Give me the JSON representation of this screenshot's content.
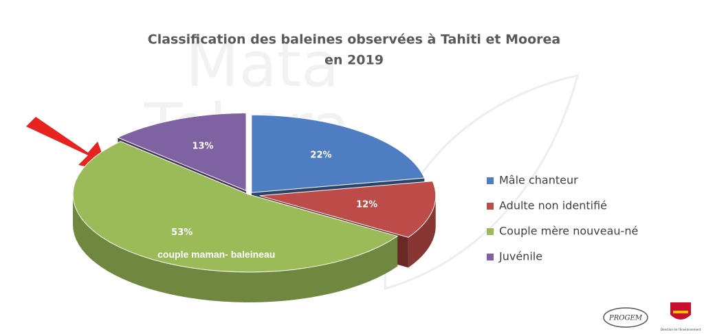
{
  "chart_data": {
    "type": "pie3d",
    "title": [
      "Classification des baleines observées à Tahiti et Moorea",
      "en 2019"
    ],
    "categories": [
      "Mâle chanteur",
      "Adulte non identifié",
      "Couple mère nouveau-né",
      "Juvénile"
    ],
    "values": [
      22,
      12,
      53,
      13
    ],
    "value_labels": [
      "22%",
      "12%",
      "53%",
      "13%"
    ],
    "colors": [
      "#4f7dc1",
      "#bd4b47",
      "#9bbb59",
      "#7e62a1"
    ],
    "annotation": "couple maman- baleineau",
    "watermark": [
      "Mata",
      "Tohora"
    ],
    "logos": [
      "PROGEM",
      "Direction de l'Environnement"
    ],
    "legend": "right"
  }
}
